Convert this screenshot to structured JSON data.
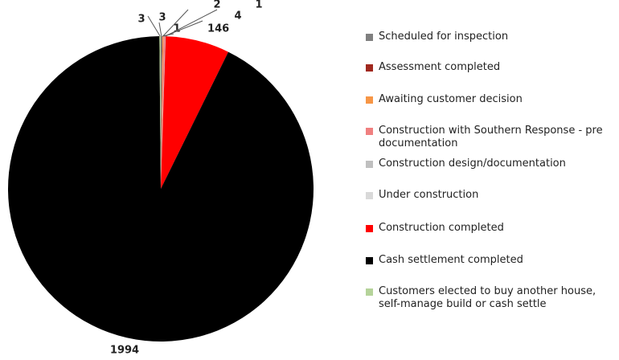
{
  "chart_data": {
    "type": "pie",
    "categories": [
      "Scheduled for inspection",
      "Assessment completed",
      "Awaiting customer decision",
      "Construction with Southern Response - pre documentation",
      "Construction design/documentation",
      "Under construction",
      "Construction completed",
      "Cash settlement completed",
      "Customers elected to buy another house, self-manage build or cash settle"
    ],
    "values": [
      3,
      1,
      2,
      4,
      1,
      null,
      146,
      1994,
      3
    ],
    "colors": [
      "#808080",
      "#a0281e",
      "#f79646",
      "#f08080",
      "#c0c0c0",
      "#d9d9d9",
      "#ff0000",
      "#000000",
      "#b5d39a"
    ]
  }
}
